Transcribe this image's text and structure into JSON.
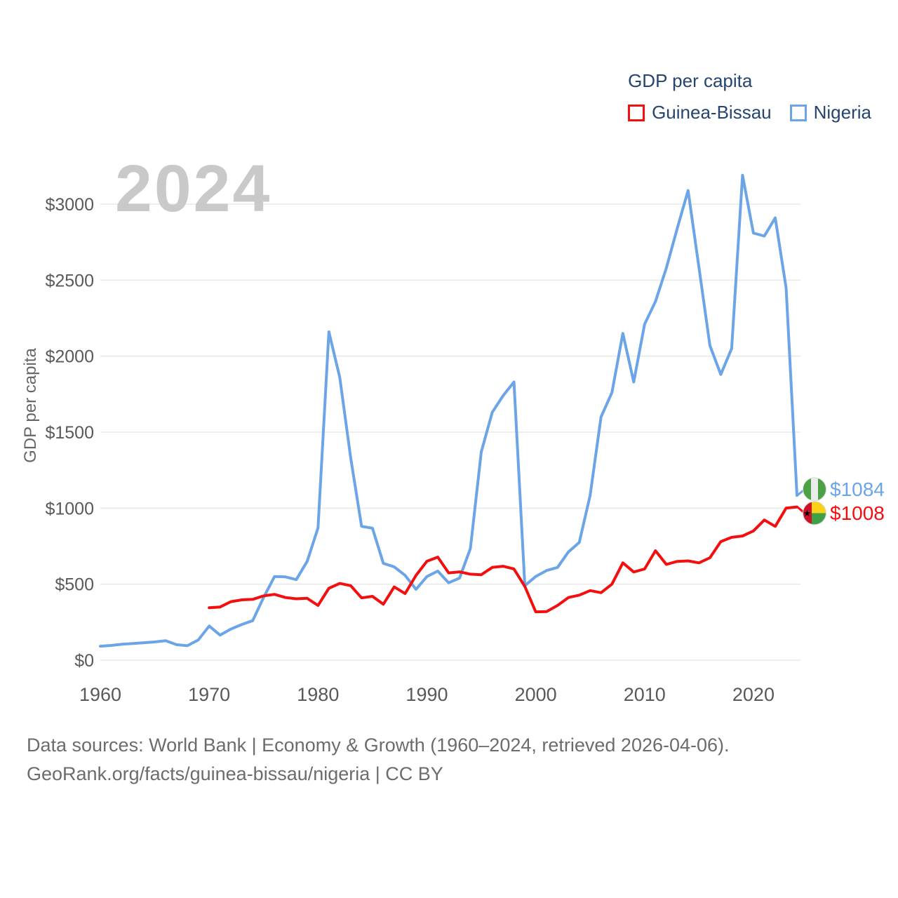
{
  "watermark": "2024",
  "legend": {
    "title": "GDP per capita",
    "series": [
      {
        "label": "Guinea-Bissau",
        "color": "#f40f0f"
      },
      {
        "label": "Nigeria",
        "color": "#6ba4e7"
      }
    ]
  },
  "y_axis": {
    "title": "GDP per capita",
    "ticks": [
      {
        "label": "$0",
        "value": 0
      },
      {
        "label": "$500",
        "value": 500
      },
      {
        "label": "$1000",
        "value": 1000
      },
      {
        "label": "$1500",
        "value": 1500
      },
      {
        "label": "$2000",
        "value": 2000
      },
      {
        "label": "$2500",
        "value": 2500
      },
      {
        "label": "$3000",
        "value": 3000
      }
    ]
  },
  "x_axis": {
    "ticks": [
      {
        "label": "1960",
        "value": 1960
      },
      {
        "label": "1970",
        "value": 1970
      },
      {
        "label": "1980",
        "value": 1980
      },
      {
        "label": "1990",
        "value": 1990
      },
      {
        "label": "2000",
        "value": 2000
      },
      {
        "label": "2010",
        "value": 2010
      },
      {
        "label": "2020",
        "value": 2020
      }
    ]
  },
  "end_labels": [
    {
      "series": "Nigeria",
      "label": "$1084",
      "value": 1084,
      "color": "#6ba4e7",
      "flag": "nigeria"
    },
    {
      "series": "Guinea-Bissau",
      "label": "$1008",
      "value": 1008,
      "color": "#f40f0f",
      "flag": "guinea-bissau"
    }
  ],
  "footer": {
    "line1": "Data sources: World Bank | Economy & Growth (1960–2024, retrieved 2026-04-06).",
    "line2": "GeoRank.org/facts/guinea-bissau/nigeria | CC BY"
  },
  "chart_data": {
    "type": "line",
    "title": "GDP per capita",
    "ylabel": "GDP per capita",
    "ylim": [
      0,
      3000
    ],
    "xlim": [
      1960,
      2024
    ],
    "grid": "horizontal",
    "legend_position": "top-right",
    "series": [
      {
        "name": "Guinea-Bissau",
        "color": "#f40f0f",
        "start_year": 1970,
        "values": [
          345,
          350,
          385,
          397,
          400,
          423,
          433,
          412,
          404,
          407,
          360,
          473,
          505,
          490,
          410,
          420,
          368,
          482,
          438,
          558,
          651,
          678,
          574,
          581,
          566,
          562,
          610,
          618,
          600,
          485,
          318,
          320,
          360,
          412,
          428,
          458,
          444,
          500,
          640,
          580,
          600,
          720,
          630,
          650,
          653,
          640,
          674,
          780,
          808,
          817,
          850,
          922,
          880,
          1000,
          1008
        ]
      },
      {
        "name": "Nigeria",
        "color": "#6ba4e7",
        "start_year": 1960,
        "values": [
          92,
          97,
          105,
          110,
          115,
          120,
          128,
          102,
          95,
          133,
          225,
          165,
          205,
          235,
          260,
          412,
          550,
          548,
          530,
          650,
          870,
          2160,
          1860,
          1330,
          880,
          868,
          637,
          614,
          558,
          466,
          550,
          586,
          509,
          540,
          735,
          1370,
          1630,
          1740,
          1830,
          490,
          550,
          590,
          610,
          712,
          775,
          1085,
          1600,
          1760,
          2150,
          1830,
          2210,
          2360,
          2580,
          2840,
          3090,
          2580,
          2070,
          1880,
          2050,
          3190,
          2810,
          2790,
          2910,
          2450,
          1084
        ]
      }
    ]
  }
}
